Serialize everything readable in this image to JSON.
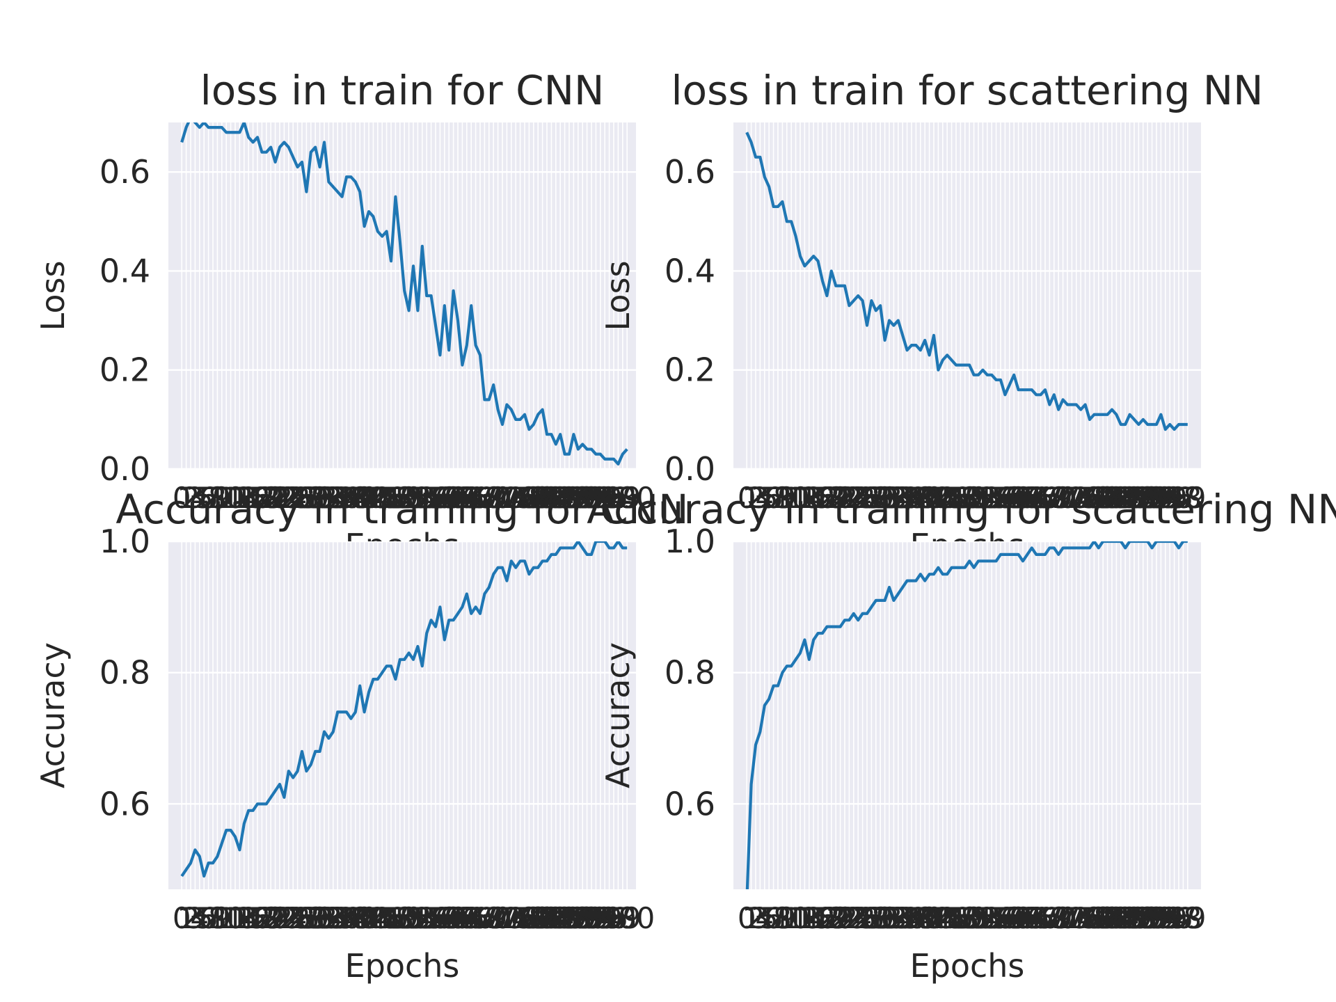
{
  "colors": {
    "line": "#1f77b4",
    "axes_bg": "#eaeaf2",
    "grid": "#ffffff",
    "text": "#262626"
  },
  "chart_data": [
    {
      "type": "line",
      "title": "loss in train for CNN",
      "xlabel": "Epochs",
      "ylabel": "Loss",
      "xlim": [
        -3,
        102
      ],
      "ylim": [
        0,
        0.7
      ],
      "yticks": [
        0.0,
        0.2,
        0.4,
        0.6
      ],
      "ytick_labels": [
        "0.0",
        "0.2",
        "0.4",
        "0.6"
      ],
      "grid": true,
      "series": [
        {
          "values": [
            0.66,
            0.69,
            0.71,
            0.7,
            0.69,
            0.7,
            0.69,
            0.69,
            0.69,
            0.69,
            0.68,
            0.68,
            0.68,
            0.68,
            0.7,
            0.67,
            0.66,
            0.67,
            0.64,
            0.64,
            0.65,
            0.62,
            0.65,
            0.66,
            0.65,
            0.63,
            0.61,
            0.62,
            0.56,
            0.64,
            0.65,
            0.61,
            0.66,
            0.58,
            0.57,
            0.56,
            0.55,
            0.59,
            0.59,
            0.58,
            0.56,
            0.49,
            0.52,
            0.51,
            0.48,
            0.47,
            0.48,
            0.42,
            0.55,
            0.46,
            0.36,
            0.32,
            0.41,
            0.32,
            0.45,
            0.35,
            0.35,
            0.29,
            0.23,
            0.33,
            0.24,
            0.36,
            0.3,
            0.21,
            0.25,
            0.33,
            0.25,
            0.23,
            0.14,
            0.14,
            0.17,
            0.12,
            0.09,
            0.13,
            0.12,
            0.1,
            0.1,
            0.11,
            0.08,
            0.09,
            0.11,
            0.12,
            0.07,
            0.07,
            0.05,
            0.07,
            0.03,
            0.03,
            0.07,
            0.04,
            0.05,
            0.04,
            0.04,
            0.03,
            0.03,
            0.02,
            0.02,
            0.02,
            0.01,
            0.03,
            0.04
          ]
        }
      ],
      "xticks": "0-100 (all epochs labelled; labels overlap)"
    },
    {
      "type": "line",
      "title": "loss in train for scattering NN",
      "xlabel": "Epochs",
      "ylabel": "Loss",
      "xlim": [
        -3,
        102
      ],
      "ylim": [
        0,
        0.7
      ],
      "yticks": [
        0.0,
        0.2,
        0.4,
        0.6
      ],
      "ytick_labels": [
        "0.0",
        "0.2",
        "0.4",
        "0.6"
      ],
      "grid": true,
      "series": [
        {
          "values": [
            0.68,
            0.66,
            0.63,
            0.63,
            0.59,
            0.57,
            0.53,
            0.53,
            0.54,
            0.5,
            0.5,
            0.47,
            0.43,
            0.41,
            0.42,
            0.43,
            0.42,
            0.38,
            0.35,
            0.4,
            0.37,
            0.37,
            0.37,
            0.33,
            0.34,
            0.35,
            0.34,
            0.29,
            0.34,
            0.32,
            0.33,
            0.26,
            0.3,
            0.29,
            0.3,
            0.27,
            0.24,
            0.25,
            0.25,
            0.24,
            0.26,
            0.23,
            0.27,
            0.2,
            0.22,
            0.23,
            0.22,
            0.21,
            0.21,
            0.21,
            0.21,
            0.19,
            0.19,
            0.2,
            0.19,
            0.19,
            0.18,
            0.18,
            0.15,
            0.17,
            0.19,
            0.16,
            0.16,
            0.16,
            0.16,
            0.15,
            0.15,
            0.16,
            0.13,
            0.15,
            0.12,
            0.14,
            0.13,
            0.13,
            0.13,
            0.12,
            0.13,
            0.1,
            0.11,
            0.11,
            0.11,
            0.11,
            0.12,
            0.11,
            0.09,
            0.09,
            0.11,
            0.1,
            0.09,
            0.1,
            0.09,
            0.09,
            0.09,
            0.11,
            0.08,
            0.09,
            0.08,
            0.09,
            0.09,
            0.09
          ]
        }
      ],
      "xticks": "0-99 (all epochs labelled; labels overlap)"
    },
    {
      "type": "line",
      "title": "Accuracy in training for CNN",
      "xlabel": "Epochs",
      "ylabel": "Accuracy",
      "xlim": [
        -3,
        102
      ],
      "ylim": [
        0.47,
        1.0
      ],
      "yticks": [
        0.6,
        0.8,
        1.0
      ],
      "ytick_labels": [
        "0.6",
        "0.8",
        "1.0"
      ],
      "grid": true,
      "series": [
        {
          "values": [
            0.49,
            0.5,
            0.51,
            0.53,
            0.52,
            0.49,
            0.51,
            0.51,
            0.52,
            0.54,
            0.56,
            0.56,
            0.55,
            0.53,
            0.57,
            0.59,
            0.59,
            0.6,
            0.6,
            0.6,
            0.61,
            0.62,
            0.63,
            0.61,
            0.65,
            0.64,
            0.65,
            0.68,
            0.65,
            0.66,
            0.68,
            0.68,
            0.71,
            0.7,
            0.71,
            0.74,
            0.74,
            0.74,
            0.73,
            0.74,
            0.78,
            0.74,
            0.77,
            0.79,
            0.79,
            0.8,
            0.81,
            0.81,
            0.79,
            0.82,
            0.82,
            0.83,
            0.82,
            0.84,
            0.81,
            0.86,
            0.88,
            0.87,
            0.9,
            0.85,
            0.88,
            0.88,
            0.89,
            0.9,
            0.92,
            0.89,
            0.9,
            0.89,
            0.92,
            0.93,
            0.95,
            0.96,
            0.96,
            0.94,
            0.97,
            0.96,
            0.97,
            0.97,
            0.95,
            0.96,
            0.96,
            0.97,
            0.97,
            0.98,
            0.98,
            0.99,
            0.99,
            0.99,
            0.99,
            1.0,
            0.99,
            0.98,
            0.98,
            1.0,
            1.0,
            1.0,
            0.99,
            0.99,
            1.0,
            0.99,
            0.99
          ]
        }
      ],
      "xticks": "0-100 (all epochs labelled; labels overlap)"
    },
    {
      "type": "line",
      "title": "Accuracy in training for scattering NN",
      "xlabel": "Epochs",
      "ylabel": "Accuracy",
      "xlim": [
        -3,
        102
      ],
      "ylim": [
        0.47,
        1.0
      ],
      "yticks": [
        0.6,
        0.8,
        1.0
      ],
      "ytick_labels": [
        "0.6",
        "0.8",
        "1.0"
      ],
      "grid": true,
      "series": [
        {
          "values": [
            0.45,
            0.63,
            0.69,
            0.71,
            0.75,
            0.76,
            0.78,
            0.78,
            0.8,
            0.81,
            0.81,
            0.82,
            0.83,
            0.85,
            0.82,
            0.85,
            0.86,
            0.86,
            0.87,
            0.87,
            0.87,
            0.87,
            0.88,
            0.88,
            0.89,
            0.88,
            0.89,
            0.89,
            0.9,
            0.91,
            0.91,
            0.91,
            0.93,
            0.91,
            0.92,
            0.93,
            0.94,
            0.94,
            0.94,
            0.95,
            0.94,
            0.95,
            0.95,
            0.96,
            0.95,
            0.95,
            0.96,
            0.96,
            0.96,
            0.96,
            0.97,
            0.96,
            0.97,
            0.97,
            0.97,
            0.97,
            0.97,
            0.98,
            0.98,
            0.98,
            0.98,
            0.98,
            0.97,
            0.98,
            0.99,
            0.98,
            0.98,
            0.98,
            0.99,
            0.99,
            0.98,
            0.99,
            0.99,
            0.99,
            0.99,
            0.99,
            0.99,
            0.99,
            1.0,
            0.99,
            1.0,
            1.0,
            1.0,
            1.0,
            1.0,
            0.99,
            1.0,
            1.0,
            1.0,
            1.0,
            1.0,
            0.99,
            1.0,
            1.0,
            1.0,
            1.0,
            1.0,
            0.99,
            1.0,
            1.0
          ]
        }
      ],
      "xticks": "0-99 (all epochs labelled; labels overlap)"
    }
  ]
}
